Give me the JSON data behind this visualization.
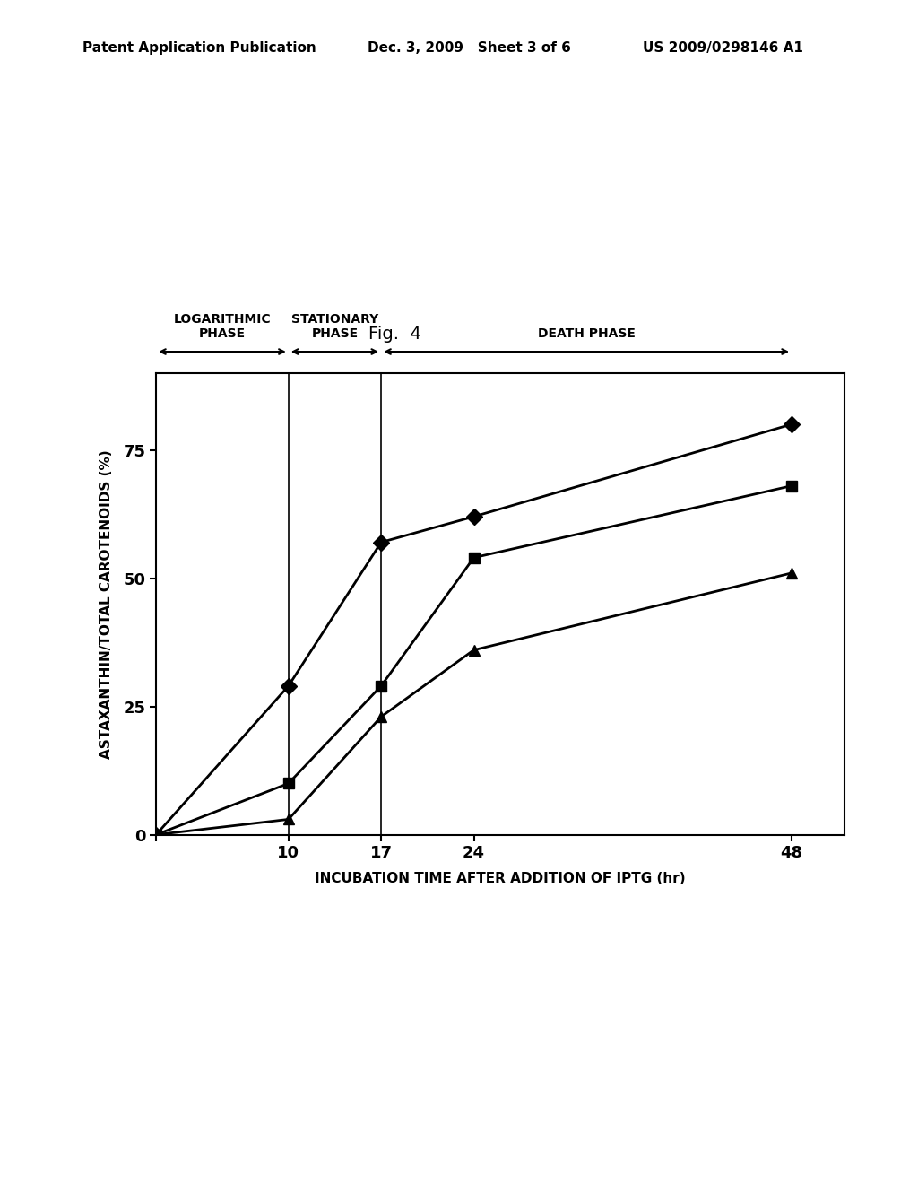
{
  "fig_label": "Fig.  4",
  "header_left": "Patent Application Publication",
  "header_mid": "Dec. 3, 2009   Sheet 3 of 6",
  "header_right": "US 2009/0298146 A1",
  "xlabel": "INCUBATION TIME AFTER ADDITION OF IPTG (hr)",
  "ylabel": "ASTAXANTHIN/TOTAL CAROTENOIDS (%)",
  "x_ticks": [
    0,
    10,
    17,
    24,
    48
  ],
  "x_tick_labels": [
    "",
    "10",
    "17",
    "24",
    "48"
  ],
  "y_ticks": [
    0,
    25,
    50,
    75
  ],
  "ylim": [
    0,
    90
  ],
  "xlim": [
    0,
    52
  ],
  "phases": [
    {
      "label": "LOGARITHMIC\nPHASE",
      "x_start": 0,
      "x_end": 10
    },
    {
      "label": "STATIONARY\nPHASE",
      "x_start": 10,
      "x_end": 17
    },
    {
      "label": "DEATH PHASE",
      "x_start": 17,
      "x_end": 48
    }
  ],
  "phase_dividers": [
    10,
    17
  ],
  "series": [
    {
      "x": [
        0,
        10,
        17,
        24,
        48
      ],
      "y": [
        0,
        29,
        57,
        62,
        80
      ],
      "marker": "D",
      "markersize": 9,
      "linewidth": 2.0,
      "color": "#000000"
    },
    {
      "x": [
        0,
        10,
        17,
        24,
        48
      ],
      "y": [
        0,
        10,
        29,
        54,
        68
      ],
      "marker": "s",
      "markersize": 9,
      "linewidth": 2.0,
      "color": "#000000"
    },
    {
      "x": [
        0,
        10,
        17,
        24,
        48
      ],
      "y": [
        0,
        3,
        23,
        36,
        51
      ],
      "marker": "^",
      "markersize": 9,
      "linewidth": 2.0,
      "color": "#000000"
    }
  ],
  "background_color": "#ffffff",
  "text_color": "#000000"
}
